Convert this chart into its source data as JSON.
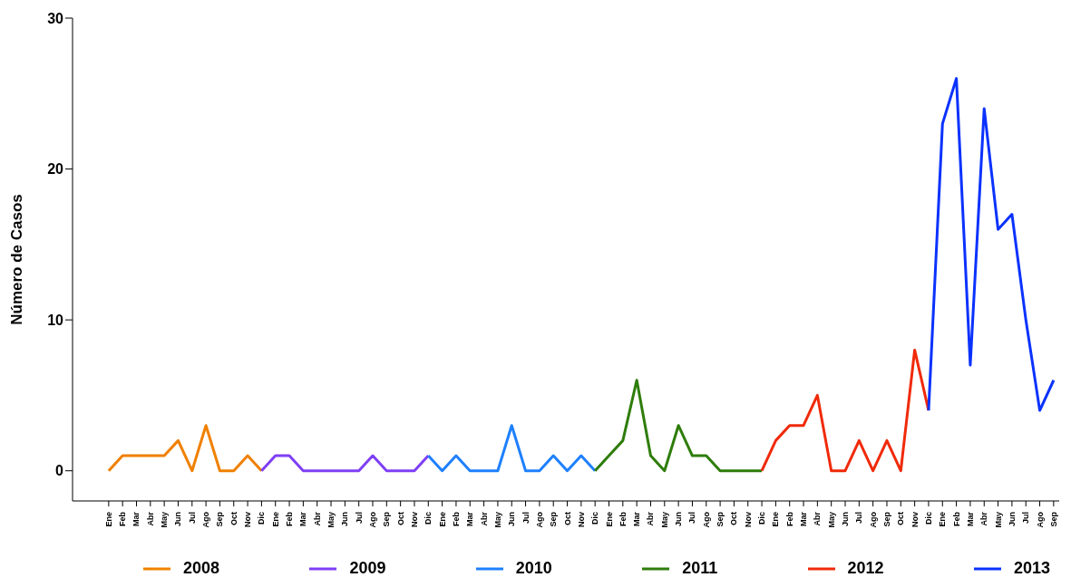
{
  "chart_data": {
    "type": "line",
    "ylabel": "Número de Casos",
    "categories": [
      "Ene",
      "Feb",
      "Mar",
      "Abr",
      "May",
      "Jun",
      "Jul",
      "Ago",
      "Sep",
      "Oct",
      "Nov",
      "Dic",
      "Ene",
      "Feb",
      "Mar",
      "Abr",
      "May",
      "Jun",
      "Jul",
      "Ago",
      "Sep",
      "Oct",
      "Nov",
      "Dic",
      "Ene",
      "Feb",
      "Mar",
      "Abr",
      "May",
      "Jun",
      "Jul",
      "Ago",
      "Sep",
      "Oct",
      "Nov",
      "Dic",
      "Ene",
      "Feb",
      "Mar",
      "Abr",
      "May",
      "Jun",
      "Jul",
      "Ago",
      "Sep",
      "Oct",
      "Nov",
      "Dic",
      "Ene",
      "Feb",
      "Mar",
      "Abr",
      "May",
      "Jun",
      "Jul",
      "Ago",
      "Sep",
      "Oct",
      "Nov",
      "Dic",
      "Ene",
      "Feb",
      "Mar",
      "Abr",
      "May",
      "Jun",
      "Jul",
      "Ago",
      "Sep"
    ],
    "series": [
      {
        "name": "2008",
        "color": "#f08000",
        "values": [
          0,
          1,
          1,
          1,
          1,
          2,
          0,
          3,
          0,
          0,
          1,
          0,
          null,
          null,
          null,
          null,
          null,
          null,
          null,
          null,
          null,
          null,
          null,
          null,
          null,
          null,
          null,
          null,
          null,
          null,
          null,
          null,
          null,
          null,
          null,
          null,
          null,
          null,
          null,
          null,
          null,
          null,
          null,
          null,
          null,
          null,
          null,
          null,
          null,
          null,
          null,
          null,
          null,
          null,
          null,
          null,
          null,
          null,
          null,
          null,
          null,
          null,
          null,
          null,
          null,
          null,
          null,
          null,
          null
        ]
      },
      {
        "name": "2009",
        "color": "#7f3ff5",
        "values": [
          null,
          null,
          null,
          null,
          null,
          null,
          null,
          null,
          null,
          null,
          null,
          0,
          1,
          1,
          0,
          0,
          0,
          0,
          0,
          1,
          0,
          0,
          0,
          1,
          null,
          null,
          null,
          null,
          null,
          null,
          null,
          null,
          null,
          null,
          null,
          null,
          null,
          null,
          null,
          null,
          null,
          null,
          null,
          null,
          null,
          null,
          null,
          null,
          null,
          null,
          null,
          null,
          null,
          null,
          null,
          null,
          null,
          null,
          null,
          null,
          null,
          null,
          null,
          null,
          null,
          null,
          null,
          null,
          null
        ]
      },
      {
        "name": "2010",
        "color": "#1e80ff",
        "values": [
          null,
          null,
          null,
          null,
          null,
          null,
          null,
          null,
          null,
          null,
          null,
          null,
          null,
          null,
          null,
          null,
          null,
          null,
          null,
          null,
          null,
          null,
          null,
          1,
          0,
          1,
          0,
          0,
          0,
          3,
          0,
          0,
          1,
          0,
          1,
          0,
          null,
          null,
          null,
          null,
          null,
          null,
          null,
          null,
          null,
          null,
          null,
          null,
          null,
          null,
          null,
          null,
          null,
          null,
          null,
          null,
          null,
          null,
          null,
          null,
          null,
          null,
          null,
          null,
          null,
          null,
          null,
          null,
          null
        ]
      },
      {
        "name": "2011",
        "color": "#2e7d0a",
        "values": [
          null,
          null,
          null,
          null,
          null,
          null,
          null,
          null,
          null,
          null,
          null,
          null,
          null,
          null,
          null,
          null,
          null,
          null,
          null,
          null,
          null,
          null,
          null,
          null,
          null,
          null,
          null,
          null,
          null,
          null,
          null,
          null,
          null,
          null,
          null,
          0,
          1,
          2,
          6,
          1,
          0,
          3,
          1,
          1,
          0,
          0,
          0,
          0,
          null,
          null,
          null,
          null,
          null,
          null,
          null,
          null,
          null,
          null,
          null,
          null,
          null,
          null,
          null,
          null,
          null,
          null,
          null,
          null,
          null
        ]
      },
      {
        "name": "2012",
        "color": "#f02a0a",
        "values": [
          null,
          null,
          null,
          null,
          null,
          null,
          null,
          null,
          null,
          null,
          null,
          null,
          null,
          null,
          null,
          null,
          null,
          null,
          null,
          null,
          null,
          null,
          null,
          null,
          null,
          null,
          null,
          null,
          null,
          null,
          null,
          null,
          null,
          null,
          null,
          null,
          null,
          null,
          null,
          null,
          null,
          null,
          null,
          null,
          null,
          null,
          null,
          0,
          2,
          3,
          3,
          5,
          0,
          0,
          2,
          0,
          2,
          0,
          8,
          4,
          null,
          null,
          null,
          null,
          null,
          null,
          null,
          null,
          null
        ]
      },
      {
        "name": "2013",
        "color": "#0a32ff",
        "values": [
          null,
          null,
          null,
          null,
          null,
          null,
          null,
          null,
          null,
          null,
          null,
          null,
          null,
          null,
          null,
          null,
          null,
          null,
          null,
          null,
          null,
          null,
          null,
          null,
          null,
          null,
          null,
          null,
          null,
          null,
          null,
          null,
          null,
          null,
          null,
          null,
          null,
          null,
          null,
          null,
          null,
          null,
          null,
          null,
          null,
          null,
          null,
          null,
          null,
          null,
          null,
          null,
          null,
          null,
          null,
          null,
          null,
          null,
          null,
          4,
          23,
          26,
          7,
          24,
          16,
          17,
          10,
          4,
          6
        ]
      }
    ],
    "ylim": [
      -2,
      30
    ],
    "yticks": [
      0,
      10,
      20,
      30
    ],
    "grid": false,
    "legend": "bottom",
    "marker": "none",
    "line_style": "solid"
  }
}
